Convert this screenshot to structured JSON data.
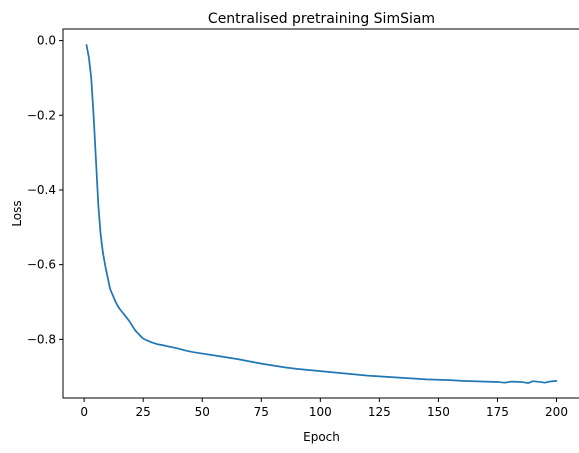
{
  "chart_data": {
    "type": "line",
    "title": "Centralised pretraining SimSiam",
    "xlabel": "Epoch",
    "ylabel": "Loss",
    "xlim": [
      -8.95,
      209.95
    ],
    "ylim": [
      -0.957,
      0.031
    ],
    "xticks": [
      0,
      25,
      50,
      75,
      100,
      125,
      150,
      175,
      200
    ],
    "xtick_labels": [
      "0",
      "25",
      "50",
      "75",
      "100",
      "125",
      "150",
      "175",
      "200"
    ],
    "yticks": [
      0.0,
      -0.2,
      -0.4,
      -0.6,
      -0.8
    ],
    "ytick_labels": [
      "0.0",
      "−0.2",
      "−0.4",
      "−0.6",
      "−0.8"
    ],
    "grid": false,
    "line_color": "#1f77b4",
    "series": [
      {
        "x": [
          1,
          2,
          3,
          4,
          5,
          6,
          7,
          8,
          9,
          10,
          11,
          12,
          13,
          14,
          15,
          16,
          17,
          18,
          19,
          20,
          21,
          22,
          23,
          24,
          25,
          27,
          29,
          31,
          33,
          35,
          38,
          40,
          43,
          46,
          50,
          55,
          60,
          65,
          70,
          75,
          80,
          85,
          90,
          95,
          100,
          105,
          110,
          115,
          120,
          125,
          130,
          135,
          140,
          145,
          150,
          155,
          160,
          165,
          170,
          175,
          178,
          181,
          185,
          188,
          190,
          193,
          195,
          197,
          200
        ],
        "y": [
          -0.012,
          -0.045,
          -0.1,
          -0.2,
          -0.32,
          -0.44,
          -0.52,
          -0.57,
          -0.605,
          -0.635,
          -0.665,
          -0.68,
          -0.695,
          -0.708,
          -0.718,
          -0.726,
          -0.734,
          -0.742,
          -0.75,
          -0.76,
          -0.77,
          -0.779,
          -0.785,
          -0.792,
          -0.798,
          -0.804,
          -0.809,
          -0.813,
          -0.815,
          -0.818,
          -0.822,
          -0.825,
          -0.83,
          -0.834,
          -0.838,
          -0.843,
          -0.848,
          -0.853,
          -0.859,
          -0.865,
          -0.87,
          -0.875,
          -0.879,
          -0.882,
          -0.885,
          -0.888,
          -0.891,
          -0.894,
          -0.897,
          -0.899,
          -0.901,
          -0.903,
          -0.905,
          -0.907,
          -0.908,
          -0.909,
          -0.911,
          -0.912,
          -0.913,
          -0.914,
          -0.916,
          -0.913,
          -0.914,
          -0.917,
          -0.912,
          -0.914,
          -0.916,
          -0.913,
          -0.911
        ]
      }
    ]
  }
}
